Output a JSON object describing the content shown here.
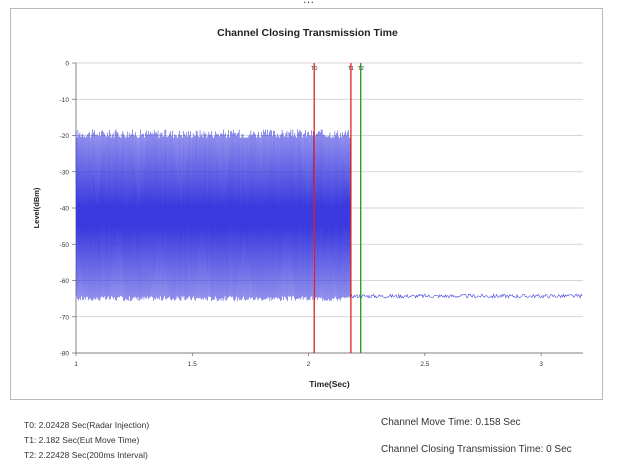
{
  "page": {
    "caption": "…"
  },
  "chart_data": {
    "type": "line",
    "title": "Channel Closing Transmission Time",
    "xlabel": "Time(Sec)",
    "ylabel": "Level(dBm)",
    "xlim": [
      1,
      3.18
    ],
    "ylim": [
      -80,
      0
    ],
    "x_ticks": [
      1,
      1.5,
      2,
      2.5,
      3
    ],
    "x_tick_labels": [
      "1",
      "1.5",
      "2",
      "2.5",
      "3"
    ],
    "y_ticks": [
      0,
      -10,
      -20,
      -30,
      -40,
      -50,
      -60,
      -70,
      -80
    ],
    "y_tick_labels": [
      "0",
      "-10",
      "-20",
      "-30",
      "-40",
      "-50",
      "-60",
      "-70",
      "-80"
    ],
    "grid": "horizontal",
    "series": [
      {
        "color": "#3a3adf",
        "segments": [
          {
            "x_start": 1.0,
            "x_end": 2.18,
            "pattern": "pulsed",
            "high": -19.5,
            "low": -65
          },
          {
            "x_start": 2.18,
            "x_end": 3.18,
            "pattern": "noise",
            "level": -64.3
          }
        ]
      }
    ],
    "markers": [
      {
        "label": "T0",
        "x": 2.02428,
        "color": "#e02020"
      },
      {
        "label": "T1",
        "x": 2.182,
        "color": "#e02020"
      },
      {
        "label": "T2",
        "x": 2.22428,
        "color": "#1a9a1a"
      }
    ]
  },
  "footer": {
    "t0": "T0: 2.02428 Sec(Radar Injection)",
    "t1": "T1: 2.182 Sec(Eut Move Time)",
    "t2": "T2: 2.22428 Sec(200ms Interval)",
    "move_time": "Channel Move Time: 0.158 Sec",
    "closing_time": "Channel Closing Transmission Time: 0 Sec"
  }
}
